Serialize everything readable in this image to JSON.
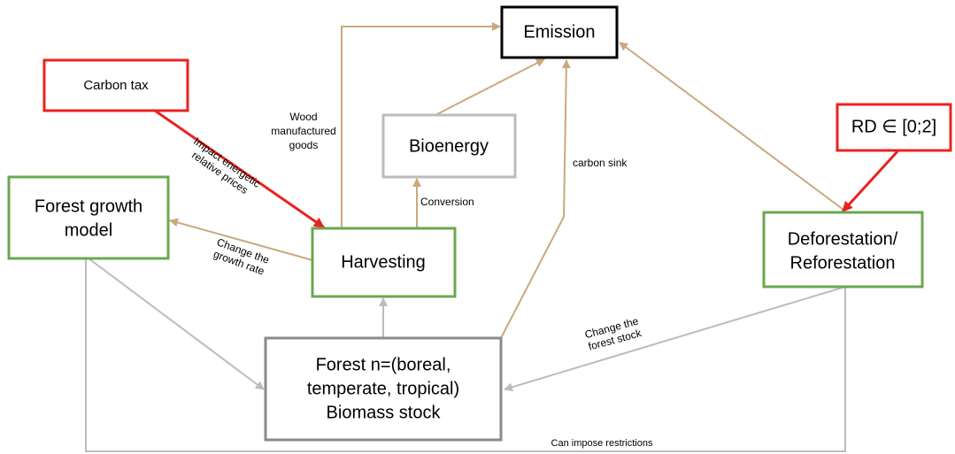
{
  "nodes": [
    {
      "id": "emission",
      "lines": [
        "Emission"
      ]
    },
    {
      "id": "carbon-tax",
      "lines": [
        "Carbon tax"
      ]
    },
    {
      "id": "bioenergy",
      "lines": [
        "Bioenergy"
      ]
    },
    {
      "id": "rd",
      "lines": [
        "RD ∈ [0;2]"
      ]
    },
    {
      "id": "forest-growth",
      "lines": [
        "Forest growth",
        "model"
      ]
    },
    {
      "id": "harvesting",
      "lines": [
        "Harvesting"
      ]
    },
    {
      "id": "deforestation",
      "lines": [
        "Deforestation/",
        "Reforestation"
      ]
    },
    {
      "id": "forest",
      "lines": [
        "Forest n=(boreal,",
        "temperate, tropical)",
        "Biomass stock"
      ]
    }
  ],
  "edge_labels": [
    {
      "lines": [
        "Wood",
        "manufactured",
        "goods"
      ]
    },
    {
      "lines": [
        "Impact energetic",
        "relative prices"
      ]
    },
    {
      "lines": [
        "Change the",
        "growth rate"
      ]
    },
    {
      "lines": [
        "Conversion"
      ]
    },
    {
      "lines": [
        "carbon sink"
      ]
    },
    {
      "lines": [
        "Change the",
        "forest stock"
      ]
    },
    {
      "lines": [
        "Can impose restrictions"
      ]
    }
  ]
}
